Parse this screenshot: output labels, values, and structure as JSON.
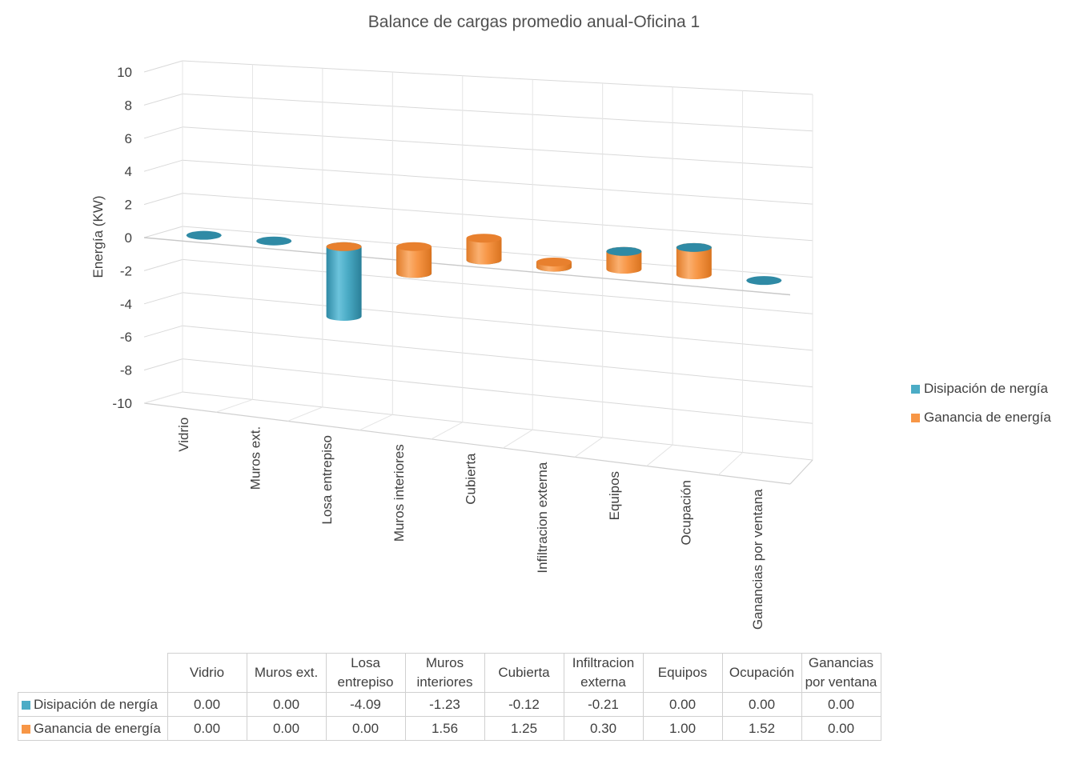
{
  "chart_data": {
    "type": "bar",
    "title": "Balance de cargas promedio anual-Oficina 1",
    "ylabel": "Energía (KW)",
    "xlabel": "",
    "ylim": [
      -10,
      10
    ],
    "yticks": [
      "10",
      "8",
      "6",
      "4",
      "2",
      "0",
      "-2",
      "-4",
      "-6",
      "-8",
      "-10"
    ],
    "categories": [
      "Vidrio",
      "Muros ext.",
      "Losa entrepiso",
      "Muros interiores",
      "Cubierta",
      "Infiltracion externa",
      "Equipos",
      "Ocupación",
      "Ganancias por ventana"
    ],
    "table_headers": [
      [
        "Vidrio"
      ],
      [
        "Muros ext."
      ],
      [
        "Losa",
        "entrepiso"
      ],
      [
        "Muros",
        "interiores"
      ],
      [
        "Cubierta"
      ],
      [
        "Infiltracion",
        "externa"
      ],
      [
        "Equipos"
      ],
      [
        "Ocupación"
      ],
      [
        "Ganancias",
        "por ventana"
      ]
    ],
    "series": [
      {
        "name": "Disipación de nergía",
        "color": "#4bacc6",
        "values": [
          0.0,
          0.0,
          -4.09,
          -1.23,
          -0.12,
          -0.21,
          0.0,
          0.0,
          0.0
        ],
        "labels": [
          "0.00",
          "0.00",
          "-4.09",
          "-1.23",
          "-0.12",
          "-0.21",
          "0.00",
          "0.00",
          "0.00"
        ]
      },
      {
        "name": "Ganancia de energía",
        "color": "#f79646",
        "values": [
          0.0,
          0.0,
          0.0,
          1.56,
          1.25,
          0.3,
          1.0,
          1.52,
          0.0
        ],
        "labels": [
          "0.00",
          "0.00",
          "0.00",
          "1.56",
          "1.25",
          "0.30",
          "1.00",
          "1.52",
          "0.00"
        ]
      }
    ],
    "stacked": true,
    "chart_style": "3d-cylinder",
    "legend_position": "right",
    "grid": true
  }
}
